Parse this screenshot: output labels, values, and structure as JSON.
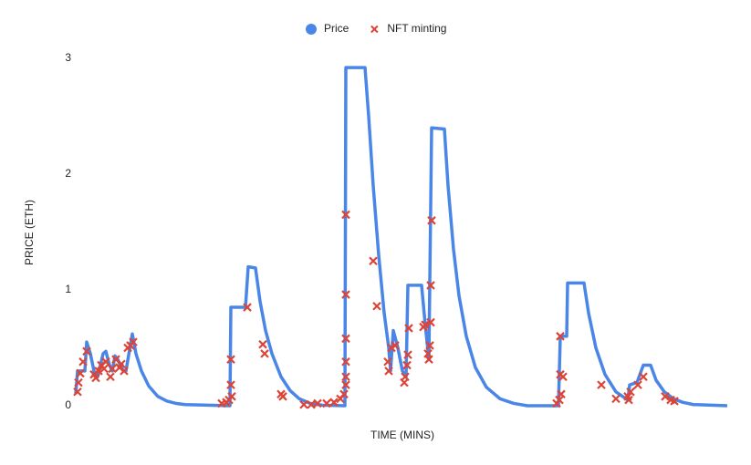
{
  "chart_data": {
    "type": "line",
    "x_label": "TIME (MINS)",
    "y_label": "PRICE (ETH)",
    "xlim": [
      0,
      714
    ],
    "ylim": [
      0,
      3
    ],
    "yticks": [
      0,
      1,
      2,
      3
    ],
    "grid": false,
    "legend": "top",
    "series": [
      {
        "name": "Price",
        "type": "line",
        "color": "#4a86e8",
        "x": [
          0,
          2,
          10,
          12,
          16,
          20,
          24,
          30,
          33,
          37,
          40,
          43,
          46,
          52,
          55,
          62,
          66,
          72,
          80,
          90,
          100,
          110,
          120,
          169,
          170,
          186,
          189,
          197,
          202,
          208,
          215,
          225,
          235,
          245,
          257,
          270,
          295,
          296,
          317,
          321,
          326,
          332,
          338,
          343,
          345,
          348,
          353,
          358,
          362,
          364,
          379,
          383,
          387,
          390,
          404,
          408,
          414,
          420,
          428,
          438,
          450,
          465,
          480,
          495,
          529,
          531,
          538,
          539,
          557,
          562,
          570,
          580,
          592,
          605,
          607,
          615,
          622,
          630,
          636,
          645,
          655,
          665,
          677,
          714
        ],
        "values": [
          0.1,
          0.3,
          0.3,
          0.55,
          0.45,
          0.3,
          0.25,
          0.45,
          0.47,
          0.35,
          0.3,
          0.43,
          0.4,
          0.3,
          0.3,
          0.62,
          0.45,
          0.3,
          0.17,
          0.08,
          0.04,
          0.02,
          0.01,
          0,
          0.85,
          0.85,
          1.2,
          1.19,
          0.9,
          0.65,
          0.45,
          0.25,
          0.13,
          0.06,
          0.02,
          0.005,
          0,
          2.92,
          2.92,
          2.5,
          1.9,
          1.3,
          0.8,
          0.5,
          0.3,
          0.65,
          0.5,
          0.3,
          0.25,
          1.04,
          1.04,
          0.7,
          0.4,
          2.4,
          2.39,
          1.9,
          1.35,
          0.95,
          0.6,
          0.33,
          0.16,
          0.06,
          0.02,
          0,
          0,
          0.6,
          0.6,
          1.06,
          1.06,
          0.8,
          0.5,
          0.27,
          0.12,
          0.05,
          0.18,
          0.2,
          0.35,
          0.35,
          0.22,
          0.12,
          0.06,
          0.03,
          0.01,
          0
        ]
      },
      {
        "name": "NFT minting",
        "type": "scatter",
        "color": "#db4437",
        "x": [
          2,
          3,
          5,
          8,
          12,
          20,
          22,
          25,
          28,
          31,
          33,
          38,
          40,
          44,
          48,
          50,
          53,
          57,
          60,
          63,
          160,
          165,
          168,
          170,
          170,
          171,
          188,
          205,
          207,
          225,
          227,
          250,
          258,
          265,
          275,
          283,
          290,
          294,
          296,
          296,
          296,
          296,
          296,
          296,
          326,
          330,
          342,
          343,
          346,
          350,
          360,
          361,
          363,
          364,
          365,
          381,
          383,
          386,
          387,
          388,
          389,
          389,
          390,
          527,
          530,
          531,
          531,
          532,
          534,
          576,
          592,
          605,
          606,
          608,
          616,
          622,
          646,
          652,
          656
        ],
        "values": [
          0.12,
          0.2,
          0.28,
          0.38,
          0.47,
          0.27,
          0.24,
          0.3,
          0.35,
          0.32,
          0.38,
          0.25,
          0.32,
          0.4,
          0.33,
          0.36,
          0.3,
          0.5,
          0.52,
          0.55,
          0.02,
          0.03,
          0.05,
          0.18,
          0.4,
          0.08,
          0.85,
          0.53,
          0.45,
          0.1,
          0.08,
          0.01,
          0.01,
          0.02,
          0.02,
          0.03,
          0.06,
          0.1,
          0.18,
          0.25,
          0.38,
          0.58,
          0.96,
          1.65,
          1.25,
          0.86,
          0.38,
          0.3,
          0.5,
          0.52,
          0.2,
          0.25,
          0.35,
          0.44,
          0.67,
          0.68,
          0.7,
          0.45,
          0.4,
          0.52,
          0.72,
          1.04,
          1.6,
          0.02,
          0.05,
          0.27,
          0.6,
          0.1,
          0.25,
          0.18,
          0.06,
          0.08,
          0.05,
          0.12,
          0.18,
          0.25,
          0.08,
          0.05,
          0.04
        ]
      }
    ]
  }
}
